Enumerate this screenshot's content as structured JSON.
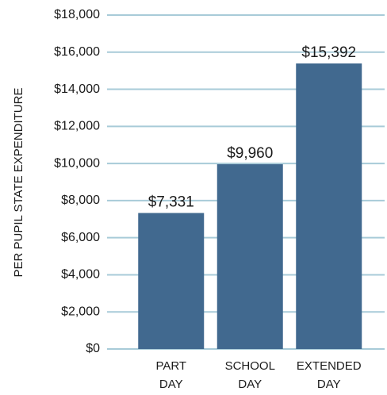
{
  "chart_data": {
    "type": "bar",
    "y_label": "PER PUPIL STATE EXPENDITURE",
    "categories": [
      "PART DAY",
      "SCHOOL DAY",
      "EXTENDED DAY"
    ],
    "values": [
      7331,
      9960,
      15392
    ],
    "value_labels": [
      "$7,331",
      "$9,960",
      "$15,392"
    ],
    "color": "#41698f",
    "ylim": [
      0,
      18000
    ],
    "yticks": [
      {
        "value": 0,
        "label": "$0"
      },
      {
        "value": 2000,
        "label": "$2,000"
      },
      {
        "value": 4000,
        "label": "$4,000"
      },
      {
        "value": 6000,
        "label": "$6,000"
      },
      {
        "value": 8000,
        "label": "$8,000"
      },
      {
        "value": 10000,
        "label": "$10,000"
      },
      {
        "value": 12000,
        "label": "$12,000"
      },
      {
        "value": 14000,
        "label": "$14,000"
      },
      {
        "value": 16000,
        "label": "$16,000"
      },
      {
        "value": 18000,
        "label": "$18,000"
      }
    ],
    "grid": true
  }
}
